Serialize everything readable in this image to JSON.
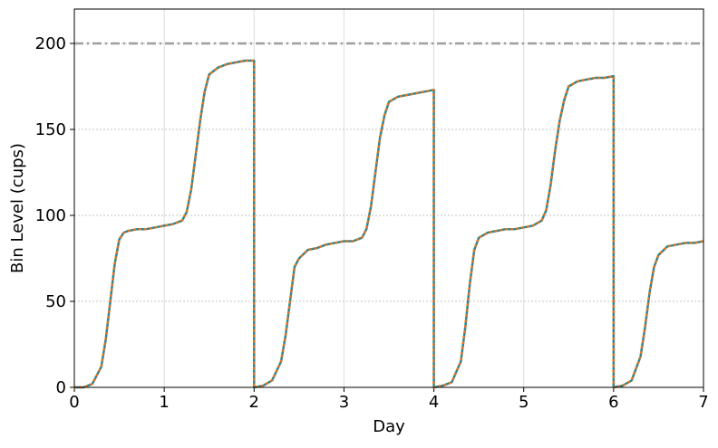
{
  "chart_data": {
    "type": "line",
    "xlabel": "Day",
    "ylabel": "Bin Level (cups)",
    "xlim": [
      0,
      7
    ],
    "ylim": [
      0,
      220
    ],
    "xticks": [
      0,
      1,
      2,
      3,
      4,
      5,
      6,
      7
    ],
    "yticks": [
      0,
      50,
      100,
      150,
      200
    ],
    "grid": true,
    "hlines": [
      {
        "y": 200,
        "color": "#9e9e9e"
      }
    ],
    "x": [
      0,
      0.1,
      0.2,
      0.3,
      0.35,
      0.4,
      0.45,
      0.5,
      0.55,
      0.6,
      0.7,
      0.8,
      0.9,
      1.0,
      1.1,
      1.2,
      1.25,
      1.3,
      1.35,
      1.4,
      1.45,
      1.5,
      1.6,
      1.7,
      1.8,
      1.9,
      2.0,
      2.0,
      2.1,
      2.2,
      2.3,
      2.35,
      2.4,
      2.45,
      2.5,
      2.6,
      2.7,
      2.8,
      2.9,
      3.0,
      3.1,
      3.2,
      3.25,
      3.3,
      3.35,
      3.4,
      3.45,
      3.5,
      3.6,
      3.7,
      3.8,
      3.9,
      4.0,
      4.0,
      4.1,
      4.2,
      4.3,
      4.35,
      4.4,
      4.45,
      4.5,
      4.6,
      4.7,
      4.8,
      4.9,
      5.0,
      5.1,
      5.2,
      5.25,
      5.3,
      5.35,
      5.4,
      5.45,
      5.5,
      5.6,
      5.7,
      5.8,
      5.9,
      6.0,
      6.0,
      6.1,
      6.2,
      6.3,
      6.35,
      6.4,
      6.45,
      6.5,
      6.6,
      6.7,
      6.8,
      6.9,
      7.0
    ],
    "series": [
      {
        "color": "#1f8a9c",
        "dash": false,
        "values": [
          0,
          0,
          2,
          12,
          28,
          50,
          72,
          86,
          90,
          91,
          92,
          92,
          93,
          94,
          95,
          97,
          102,
          115,
          135,
          155,
          172,
          182,
          186,
          188,
          189,
          190,
          190,
          0,
          1,
          4,
          15,
          30,
          50,
          70,
          75,
          80,
          81,
          83,
          84,
          85,
          85,
          87,
          92,
          105,
          125,
          145,
          158,
          166,
          169,
          170,
          171,
          172,
          173,
          0,
          1,
          3,
          15,
          35,
          60,
          80,
          87,
          90,
          91,
          92,
          92,
          93,
          94,
          97,
          103,
          118,
          138,
          155,
          167,
          175,
          178,
          179,
          180,
          180,
          181,
          0,
          1,
          4,
          18,
          35,
          55,
          70,
          77,
          82,
          83,
          84,
          84,
          85
        ]
      },
      {
        "color": "#e8721c",
        "dash": true,
        "values": [
          0,
          0,
          2,
          12,
          28,
          50,
          72,
          86,
          90,
          91,
          92,
          92,
          93,
          94,
          95,
          97,
          102,
          115,
          135,
          155,
          172,
          182,
          186,
          188,
          189,
          190,
          190,
          0,
          1,
          4,
          15,
          30,
          50,
          70,
          75,
          80,
          81,
          83,
          84,
          85,
          85,
          87,
          92,
          105,
          125,
          145,
          158,
          166,
          169,
          170,
          171,
          172,
          173,
          0,
          1,
          3,
          15,
          35,
          60,
          80,
          87,
          90,
          91,
          92,
          92,
          93,
          94,
          97,
          103,
          118,
          138,
          155,
          167,
          175,
          178,
          179,
          180,
          180,
          181,
          0,
          1,
          4,
          18,
          35,
          55,
          70,
          77,
          82,
          83,
          84,
          84,
          85
        ]
      }
    ]
  }
}
